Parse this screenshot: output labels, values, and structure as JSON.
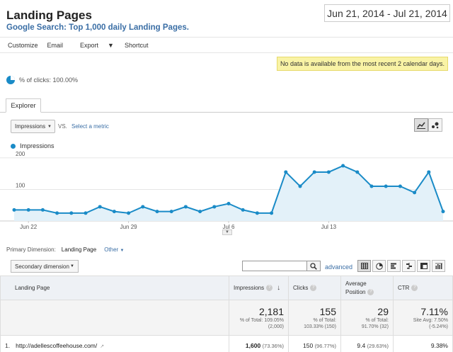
{
  "header": {
    "title": "Landing Pages",
    "subtitle": "Google Search: Top 1,000 daily Landing Pages.",
    "date_range": "Jun 21, 2014 - Jul 21, 2014"
  },
  "toolbar": {
    "customize": "Customize",
    "email": "Email",
    "export": "Export",
    "shortcut": "Shortcut"
  },
  "notice": "No data is available from the most recent 2 calendar days.",
  "sampling": {
    "text": "% of clicks: 100.00%",
    "icon": "pie-icon"
  },
  "tabs": {
    "explorer": "Explorer"
  },
  "metric": {
    "selected": "Impressions",
    "vs": "VS.",
    "select_metric": "Select a metric"
  },
  "legend": {
    "label": "Impressions",
    "color": "#1a8bc7"
  },
  "chart_data": {
    "type": "area",
    "series": [
      {
        "name": "Impressions",
        "values": [
          35,
          35,
          35,
          25,
          25,
          25,
          45,
          30,
          25,
          45,
          30,
          30,
          45,
          30,
          45,
          55,
          35,
          25,
          25,
          155,
          110,
          155,
          155,
          175,
          155,
          110,
          110,
          110,
          90,
          155,
          30
        ]
      }
    ],
    "x_tick_labels": [
      "Jun 22",
      "Jun 29",
      "Jul 6",
      "Jul 13"
    ],
    "y_tick_labels": [
      "100",
      "200"
    ],
    "ylim": [
      0,
      220
    ],
    "grid": true
  },
  "primary_dimension": {
    "label": "Primary Dimension:",
    "selected": "Landing Page",
    "other": "Other"
  },
  "secondary_dimension": "Secondary dimension",
  "search": {
    "placeholder": "",
    "advanced": "advanced"
  },
  "table": {
    "columns": {
      "landing_page": "Landing Page",
      "impressions": "Impressions",
      "clicks": "Clicks",
      "avg_position_1": "Average",
      "avg_position_2": "Position",
      "ctr": "CTR"
    },
    "totals": {
      "impressions": "2,181",
      "impressions_sub1": "% of Total: 109.05%",
      "impressions_sub2": "(2,000)",
      "clicks": "155",
      "clicks_sub1": "% of Total:",
      "clicks_sub2": "103.33% (150)",
      "position": "29",
      "position_sub1": "% of Total:",
      "position_sub2": "91.70% (32)",
      "ctr": "7.11%",
      "ctr_sub1": "Site Avg: 7.50%",
      "ctr_sub2": "(-5.24%)"
    },
    "rows": [
      {
        "num": "1.",
        "page": "http://adellescoffeehouse.com/",
        "impressions": "1,600",
        "impressions_pct": "(73.36%)",
        "clicks": "150",
        "clicks_pct": "(96.77%)",
        "position": "9.4",
        "position_pct": "(29.63%)",
        "ctr": "9.38%"
      }
    ]
  }
}
